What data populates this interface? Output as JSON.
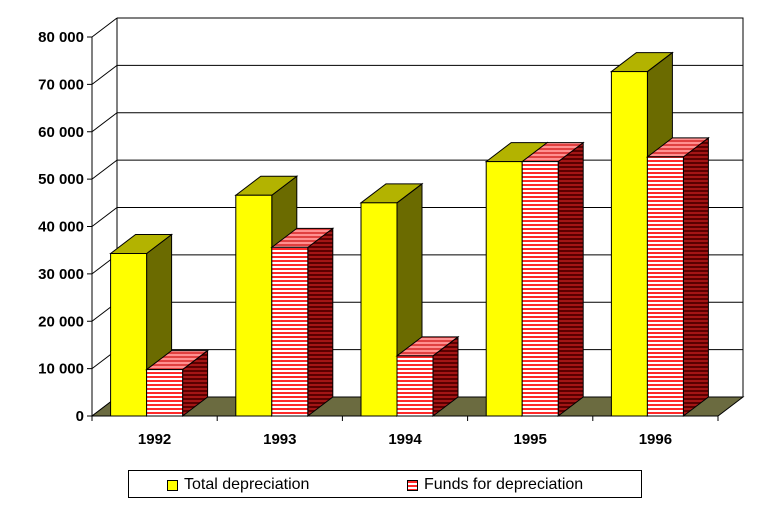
{
  "chart_data": {
    "type": "bar",
    "categories": [
      "1992",
      "1993",
      "1994",
      "1995",
      "1996"
    ],
    "series": [
      {
        "name": "Total depreciation",
        "values": [
          34300,
          46600,
          45000,
          53700,
          72700
        ]
      },
      {
        "name": "Funds for depreciation",
        "values": [
          9800,
          35600,
          12700,
          53700,
          54700
        ]
      }
    ],
    "ylim": [
      0,
      80000
    ],
    "yticks": [
      "0",
      "10 000",
      "20 000",
      "30 000",
      "40 000",
      "50 000",
      "60 000",
      "70 000",
      "80 000"
    ],
    "grid": true,
    "legend_position": "bottom",
    "colors": {
      "series1_front": "#ffff00",
      "series1_top": "#b3b300",
      "series1_side": "#6b6b00",
      "series2_front": "#ff2a2a",
      "series2_stripe": "#ffffff",
      "series2_side": "#8b0000",
      "floor": "#6b6b40"
    }
  }
}
